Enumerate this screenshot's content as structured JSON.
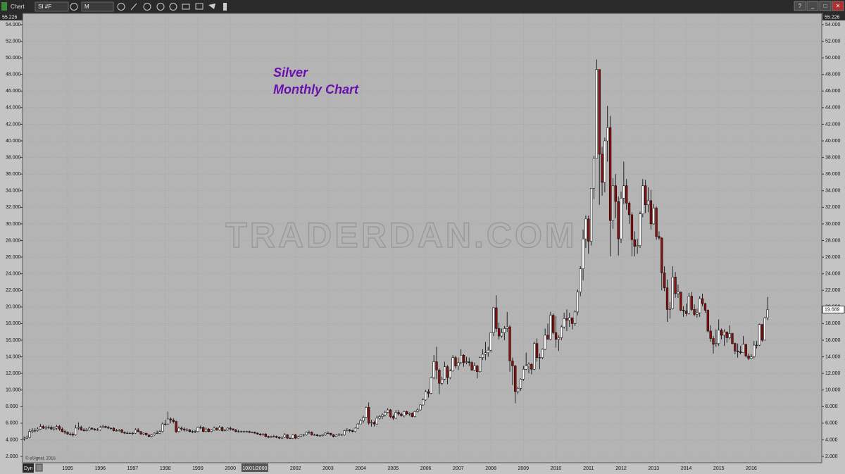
{
  "toolbar": {
    "tab": "Chart",
    "symbol": "SI #F",
    "interval": "M",
    "dyn": "Dyn",
    "window_buttons": [
      "?",
      "_",
      "□",
      "✕"
    ]
  },
  "chart_data": {
    "type": "candlestick",
    "title": "Silver",
    "subtitle": "Monthly Chart",
    "watermark": "TRADERDAN.COM",
    "copyright": "© eSignal, 2016",
    "up_color": "#ffffff",
    "down_color": "#8b1010",
    "grid": true,
    "ylim": [
      1.24,
      55.226
    ],
    "yticks": [
      {
        "value": 2,
        "label": "2.000"
      },
      {
        "value": 4,
        "label": "4.000"
      },
      {
        "value": 6,
        "label": "6.000"
      },
      {
        "value": 8,
        "label": "8.000"
      },
      {
        "value": 10,
        "label": "10.000"
      },
      {
        "value": 12,
        "label": "12.000"
      },
      {
        "value": 14,
        "label": "14.000"
      },
      {
        "value": 16,
        "label": "16.000"
      },
      {
        "value": 18,
        "label": "18.000"
      },
      {
        "value": 20,
        "label": "20.000"
      },
      {
        "value": 22,
        "label": "22.000"
      },
      {
        "value": 24,
        "label": "24.000"
      },
      {
        "value": 26,
        "label": "26.000"
      },
      {
        "value": 28,
        "label": "28.000"
      },
      {
        "value": 30,
        "label": "30.000"
      },
      {
        "value": 32,
        "label": "32.000"
      },
      {
        "value": 34,
        "label": "34.000"
      },
      {
        "value": 36,
        "label": "36.000"
      },
      {
        "value": 38,
        "label": "38.000"
      },
      {
        "value": 40,
        "label": "40.000"
      },
      {
        "value": 42,
        "label": "42.000"
      },
      {
        "value": 44,
        "label": "44.000"
      },
      {
        "value": 46,
        "label": "46.000"
      },
      {
        "value": 48,
        "label": "48.000"
      },
      {
        "value": 50,
        "label": "50.000"
      },
      {
        "value": 52,
        "label": "52.000"
      },
      {
        "value": 54,
        "label": "54.000"
      }
    ],
    "categories": [
      null,
      null,
      null,
      null,
      null,
      null,
      null,
      null,
      null,
      null,
      null,
      null,
      null,
      null,
      null,
      null,
      "1995",
      null,
      null,
      null,
      null,
      null,
      null,
      null,
      null,
      null,
      null,
      null,
      "1996",
      null,
      null,
      null,
      null,
      null,
      null,
      null,
      null,
      null,
      null,
      null,
      "1997",
      null,
      null,
      null,
      null,
      null,
      null,
      null,
      null,
      null,
      null,
      null,
      "1998",
      null,
      null,
      null,
      null,
      null,
      null,
      null,
      null,
      null,
      null,
      null,
      "1999",
      null,
      null,
      null,
      null,
      null,
      null,
      null,
      null,
      null,
      null,
      null,
      "2000",
      null,
      null,
      null,
      null,
      null,
      null,
      null,
      null,
      "10/01/2000",
      null,
      null,
      null,
      null,
      null,
      null,
      null,
      null,
      null,
      null,
      null,
      null,
      null,
      null,
      "2002",
      null,
      null,
      null,
      null,
      null,
      null,
      null,
      null,
      null,
      null,
      null,
      "2003",
      null,
      null,
      null,
      null,
      null,
      null,
      null,
      null,
      null,
      null,
      null,
      "2004",
      null,
      null,
      null,
      null,
      null,
      null,
      null,
      null,
      null,
      null,
      null,
      "2005",
      null,
      null,
      null,
      null,
      null,
      null,
      null,
      null,
      null,
      null,
      null,
      "2006",
      null,
      null,
      null,
      null,
      null,
      null,
      null,
      null,
      null,
      null,
      null,
      "2007",
      null,
      null,
      null,
      null,
      null,
      null,
      null,
      null,
      null,
      null,
      null,
      "2008",
      null,
      null,
      null,
      null,
      null,
      null,
      null,
      null,
      null,
      null,
      null,
      "2009",
      null,
      null,
      null,
      null,
      null,
      null,
      null,
      null,
      null,
      null,
      null,
      "2010",
      null,
      null,
      null,
      null,
      null,
      null,
      null,
      null,
      null,
      null,
      null,
      "2011",
      null,
      null,
      null,
      null,
      null,
      null,
      null,
      null,
      null,
      null,
      null,
      "2012",
      null,
      null,
      null,
      null,
      null,
      null,
      null,
      null,
      null,
      null,
      null,
      "2013",
      null,
      null,
      null,
      null,
      null,
      null,
      null,
      null,
      null,
      null,
      null,
      "2014",
      null,
      null,
      null,
      null,
      null,
      null,
      null,
      null,
      null,
      null,
      null,
      "2015",
      null,
      null,
      null,
      null,
      null,
      null,
      null,
      null,
      null,
      null,
      null,
      "2016",
      null,
      null,
      null,
      null,
      null,
      null
    ],
    "open": [
      4.1,
      4.2,
      4.3,
      5.0,
      5.1,
      5.1,
      5.3,
      5.6,
      5.4,
      5.5,
      5.5,
      5.3,
      5.4,
      5.6,
      5.3,
      5.0,
      4.9,
      4.7,
      4.7,
      4.6,
      5.4,
      5.5,
      5.2,
      5.1,
      5.2,
      5.4,
      5.3,
      5.2,
      5.2,
      5.5,
      5.6,
      5.5,
      5.4,
      5.4,
      5.1,
      5.1,
      5.2,
      4.9,
      4.8,
      4.8,
      4.8,
      4.8,
      5.2,
      5.0,
      4.7,
      4.8,
      4.6,
      4.4,
      4.6,
      4.8,
      4.8,
      5.0,
      5.9,
      5.9,
      6.5,
      6.4,
      6.2,
      5.0,
      5.4,
      5.3,
      5.2,
      5.2,
      5.0,
      5.0,
      5.0,
      5.5,
      5.5,
      5.0,
      5.3,
      5.0,
      5.2,
      5.4,
      5.2,
      5.5,
      5.1,
      5.2,
      5.4,
      5.3,
      5.2,
      5.0,
      5.0,
      5.0,
      5.0,
      5.0,
      4.9,
      4.9,
      4.8,
      4.7,
      4.6,
      4.7,
      4.4,
      4.3,
      4.4,
      4.4,
      4.3,
      4.2,
      4.3,
      4.6,
      4.2,
      4.2,
      4.6,
      4.2,
      4.4,
      4.6,
      4.6,
      4.9,
      4.9,
      4.6,
      4.6,
      4.5,
      4.5,
      4.6,
      4.8,
      4.8,
      4.6,
      4.4,
      4.6,
      4.6,
      4.6,
      5.1,
      5.2,
      5.1,
      5.0,
      5.4,
      5.9,
      6.3,
      6.7,
      7.9,
      6.0,
      6.1,
      5.9,
      6.6,
      6.8,
      7.0,
      7.3,
      7.6,
      6.8,
      6.6,
      7.3,
      7.1,
      6.9,
      7.4,
      7.1,
      7.2,
      6.8,
      7.4,
      7.6,
      8.2,
      8.8,
      9.8,
      9.6,
      11.5,
      13.4,
      12.4,
      10.8,
      11.3,
      12.8,
      11.5,
      12.3,
      13.9,
      12.9,
      13.3,
      14.2,
      13.3,
      13.4,
      13.3,
      12.4,
      12.9,
      12.2,
      13.9,
      14.3,
      14.5,
      14.8,
      16.9,
      19.9,
      17.4,
      16.5,
      16.9,
      17.4,
      17.6,
      13.5,
      12.9,
      9.8,
      10.2,
      11.3,
      12.5,
      12.9,
      13.1,
      12.5,
      15.6,
      13.9,
      13.9,
      14.9,
      16.6,
      16.1,
      19.0,
      16.9,
      16.1,
      16.3,
      17.6,
      18.6,
      18.4,
      18.7,
      18.0,
      19.4,
      21.8,
      24.6,
      28.2,
      30.6,
      27.9,
      34.3,
      37.9,
      48.6,
      38.4,
      35.0,
      40.0,
      41.6,
      30.4,
      34.6,
      32.7,
      28.2,
      33.1,
      34.6,
      32.5,
      31.1,
      28.1,
      27.3,
      27.4,
      31.2,
      34.6,
      32.3,
      32.8,
      30.0,
      31.9,
      28.5,
      28.3,
      24.1,
      22.3,
      19.7,
      19.8,
      23.6,
      21.6,
      21.8,
      19.6,
      19.5,
      19.2,
      21.3,
      19.7,
      19.1,
      19.3,
      21.0,
      20.4,
      19.6,
      17.1,
      16.2,
      15.5,
      15.6,
      17.2,
      16.6,
      17.0,
      16.3,
      16.8,
      15.6,
      14.7,
      14.6,
      14.5,
      15.5,
      14.1,
      13.8,
      14.0,
      15.4,
      15.4,
      17.9,
      16.0,
      18.7
    ],
    "high": [
      4.4,
      4.5,
      5.3,
      5.4,
      5.4,
      5.5,
      5.9,
      5.8,
      5.7,
      5.7,
      5.7,
      5.6,
      5.8,
      5.8,
      5.5,
      5.2,
      5.0,
      4.9,
      4.9,
      5.8,
      6.1,
      5.7,
      5.4,
      5.4,
      5.6,
      5.5,
      5.4,
      5.4,
      5.7,
      5.8,
      5.7,
      5.7,
      5.5,
      5.5,
      5.3,
      5.3,
      5.3,
      5.0,
      5.0,
      4.9,
      4.9,
      5.4,
      5.4,
      5.0,
      4.9,
      4.8,
      4.6,
      4.7,
      4.9,
      5.1,
      5.2,
      6.1,
      6.4,
      7.4,
      6.7,
      6.6,
      6.3,
      5.6,
      5.6,
      5.5,
      5.4,
      5.3,
      5.2,
      5.2,
      5.6,
      5.7,
      5.6,
      5.5,
      5.4,
      5.3,
      5.6,
      5.5,
      5.7,
      5.6,
      5.3,
      5.5,
      5.6,
      5.4,
      5.3,
      5.2,
      5.1,
      5.1,
      5.1,
      5.1,
      5.0,
      5.0,
      4.9,
      4.8,
      4.8,
      4.8,
      4.5,
      4.5,
      4.6,
      4.5,
      4.4,
      4.4,
      4.8,
      4.7,
      4.3,
      4.7,
      4.7,
      4.5,
      4.7,
      4.7,
      5.0,
      5.1,
      5.0,
      4.7,
      4.7,
      4.6,
      4.7,
      4.9,
      5.0,
      4.8,
      4.7,
      4.7,
      4.8,
      4.7,
      5.2,
      5.4,
      5.3,
      5.2,
      5.5,
      6.0,
      6.5,
      6.9,
      8.0,
      8.5,
      6.4,
      6.3,
      6.9,
      7.0,
      7.2,
      7.5,
      7.8,
      7.7,
      7.0,
      7.6,
      7.6,
      7.3,
      7.5,
      7.5,
      7.3,
      7.3,
      7.5,
      7.8,
      8.3,
      9.0,
      10.0,
      10.1,
      11.6,
      14.2,
      15.2,
      12.6,
      11.6,
      13.4,
      13.0,
      12.5,
      14.2,
      14.1,
      13.9,
      14.9,
      14.3,
      14.0,
      13.9,
      13.5,
      13.3,
      13.0,
      14.0,
      14.9,
      15.8,
      15.2,
      16.9,
      20.0,
      21.4,
      18.1,
      17.4,
      17.7,
      19.4,
      17.8,
      13.9,
      13.0,
      10.4,
      11.4,
      12.9,
      14.5,
      13.3,
      13.2,
      15.8,
      16.2,
      14.4,
      15.0,
      17.4,
      18.0,
      19.4,
      19.2,
      18.9,
      16.6,
      17.8,
      19.3,
      19.7,
      19.3,
      18.7,
      19.6,
      22.1,
      24.9,
      29.3,
      31.0,
      31.0,
      34.3,
      38.2,
      49.8,
      48.6,
      39.3,
      40.4,
      44.2,
      43.0,
      35.5,
      36.0,
      33.3,
      33.9,
      37.5,
      35.4,
      32.7,
      31.4,
      29.1,
      28.2,
      31.5,
      35.4,
      35.3,
      34.4,
      34.1,
      32.4,
      32.1,
      29.1,
      28.4,
      24.9,
      23.3,
      20.6,
      24.9,
      24.2,
      22.7,
      21.8,
      20.1,
      20.4,
      21.7,
      21.8,
      20.3,
      19.8,
      21.3,
      21.6,
      20.5,
      19.7,
      17.8,
      16.5,
      17.3,
      18.5,
      17.4,
      17.3,
      16.9,
      17.8,
      16.9,
      15.7,
      15.6,
      15.3,
      16.5,
      15.5,
      14.4,
      14.3,
      15.9,
      15.9,
      18.0,
      17.9,
      18.8,
      21.2
    ],
    "low": [
      3.9,
      4.1,
      4.2,
      4.8,
      4.9,
      5.0,
      5.2,
      5.3,
      5.2,
      5.3,
      5.2,
      5.1,
      5.2,
      5.1,
      4.9,
      4.7,
      4.6,
      4.5,
      4.4,
      4.5,
      5.2,
      5.1,
      5.0,
      5.0,
      5.1,
      5.2,
      5.1,
      5.1,
      5.1,
      5.4,
      5.4,
      5.3,
      5.2,
      5.0,
      5.0,
      5.0,
      4.8,
      4.7,
      4.7,
      4.7,
      4.6,
      4.7,
      4.9,
      4.6,
      4.6,
      4.5,
      4.3,
      4.3,
      4.5,
      4.7,
      4.7,
      4.9,
      5.7,
      5.8,
      6.0,
      6.0,
      4.8,
      4.9,
      5.1,
      5.0,
      5.0,
      4.9,
      4.8,
      4.8,
      4.9,
      5.3,
      4.9,
      4.9,
      4.9,
      4.9,
      5.1,
      5.1,
      5.1,
      5.0,
      5.0,
      5.1,
      5.1,
      5.1,
      4.9,
      4.9,
      4.9,
      4.9,
      4.9,
      4.8,
      4.8,
      4.7,
      4.6,
      4.5,
      4.5,
      4.3,
      4.2,
      4.2,
      4.3,
      4.2,
      4.1,
      4.1,
      4.2,
      4.1,
      4.1,
      4.1,
      4.1,
      4.2,
      4.3,
      4.4,
      4.5,
      4.7,
      4.5,
      4.5,
      4.4,
      4.4,
      4.4,
      4.5,
      4.7,
      4.5,
      4.3,
      4.4,
      4.5,
      4.5,
      4.5,
      5.0,
      4.9,
      4.9,
      4.9,
      5.3,
      5.9,
      6.0,
      6.6,
      5.8,
      5.6,
      5.6,
      5.8,
      6.4,
      6.5,
      6.8,
      7.2,
      6.6,
      6.4,
      6.5,
      6.9,
      6.8,
      6.7,
      7.0,
      6.9,
      6.7,
      6.7,
      7.3,
      7.5,
      8.1,
      8.7,
      9.1,
      9.5,
      11.3,
      11.3,
      9.5,
      10.6,
      11.2,
      10.7,
      11.3,
      12.2,
      12.6,
      12.4,
      13.1,
      12.8,
      13.1,
      12.9,
      12.3,
      12.3,
      11.4,
      12.1,
      13.6,
      13.6,
      14.0,
      14.6,
      16.5,
      17.0,
      16.1,
      16.3,
      16.0,
      17.0,
      12.2,
      10.6,
      8.4,
      9.5,
      9.9,
      11.1,
      12.4,
      12.0,
      11.9,
      12.4,
      13.4,
      12.5,
      13.7,
      14.8,
      16.2,
      16.0,
      16.7,
      15.1,
      14.7,
      16.0,
      17.4,
      17.1,
      17.6,
      17.3,
      17.7,
      19.0,
      21.3,
      23.2,
      27.1,
      26.4,
      27.4,
      33.0,
      37.9,
      32.3,
      33.4,
      33.8,
      37.5,
      26.1,
      29.4,
      30.7,
      26.2,
      27.7,
      32.4,
      31.7,
      30.0,
      26.1,
      26.1,
      26.4,
      27.1,
      30.8,
      31.3,
      31.4,
      29.3,
      29.9,
      28.1,
      28.1,
      22.0,
      21.9,
      18.2,
      18.6,
      19.7,
      21.1,
      21.1,
      19.5,
      18.8,
      18.9,
      19.1,
      19.5,
      18.9,
      18.7,
      18.8,
      20.1,
      19.3,
      16.9,
      15.8,
      14.4,
      15.2,
      15.3,
      16.1,
      15.3,
      15.7,
      16.1,
      15.5,
      14.3,
      13.9,
      14.3,
      14.6,
      13.9,
      13.6,
      13.7,
      13.8,
      15.0,
      15.3,
      15.8,
      16.0,
      18.4
    ],
    "close": [
      4.2,
      4.3,
      5.0,
      5.1,
      5.1,
      5.3,
      5.6,
      5.4,
      5.5,
      5.5,
      5.3,
      5.4,
      5.6,
      5.3,
      5.0,
      4.9,
      4.7,
      4.7,
      4.6,
      5.4,
      5.5,
      5.2,
      5.1,
      5.2,
      5.4,
      5.3,
      5.2,
      5.2,
      5.5,
      5.6,
      5.5,
      5.4,
      5.4,
      5.1,
      5.1,
      5.2,
      4.9,
      4.8,
      4.8,
      4.8,
      4.8,
      5.2,
      5.0,
      4.7,
      4.8,
      4.6,
      4.4,
      4.6,
      4.8,
      4.8,
      5.0,
      5.9,
      5.9,
      6.5,
      6.4,
      6.2,
      5.0,
      5.4,
      5.3,
      5.2,
      5.2,
      5.0,
      5.0,
      5.0,
      5.5,
      5.5,
      5.0,
      5.3,
      5.0,
      5.2,
      5.4,
      5.2,
      5.5,
      5.1,
      5.2,
      5.4,
      5.3,
      5.2,
      5.0,
      5.0,
      5.0,
      5.0,
      5.0,
      4.9,
      4.9,
      4.8,
      4.7,
      4.6,
      4.7,
      4.4,
      4.3,
      4.4,
      4.4,
      4.3,
      4.2,
      4.3,
      4.6,
      4.2,
      4.2,
      4.6,
      4.2,
      4.4,
      4.6,
      4.6,
      4.9,
      4.9,
      4.6,
      4.6,
      4.5,
      4.5,
      4.6,
      4.8,
      4.8,
      4.6,
      4.4,
      4.6,
      4.6,
      4.6,
      5.1,
      5.2,
      5.1,
      5.0,
      5.4,
      5.9,
      6.3,
      6.7,
      7.9,
      6.0,
      6.1,
      5.9,
      6.6,
      6.8,
      7.0,
      7.3,
      7.6,
      6.8,
      6.6,
      7.3,
      7.1,
      6.9,
      7.4,
      7.1,
      7.2,
      6.8,
      7.4,
      7.6,
      8.2,
      8.8,
      9.8,
      9.6,
      11.5,
      13.4,
      12.4,
      10.8,
      11.3,
      12.8,
      11.5,
      12.3,
      13.9,
      12.9,
      13.3,
      14.2,
      13.3,
      13.4,
      13.3,
      12.4,
      12.9,
      12.2,
      13.9,
      14.3,
      14.5,
      14.8,
      16.9,
      19.9,
      17.4,
      16.5,
      16.9,
      17.4,
      17.6,
      13.5,
      12.9,
      9.8,
      10.2,
      11.3,
      12.5,
      12.9,
      13.1,
      12.5,
      15.6,
      13.9,
      13.9,
      14.9,
      16.6,
      16.1,
      19.0,
      16.9,
      16.1,
      16.3,
      17.6,
      18.6,
      18.4,
      18.7,
      18.0,
      19.4,
      21.8,
      24.6,
      28.2,
      30.6,
      27.9,
      34.3,
      37.9,
      48.6,
      38.4,
      35.0,
      40.0,
      41.6,
      30.4,
      34.6,
      32.7,
      28.2,
      33.1,
      34.6,
      32.5,
      31.1,
      28.1,
      27.3,
      27.4,
      31.2,
      34.6,
      32.3,
      32.8,
      30.0,
      31.9,
      28.5,
      28.3,
      24.1,
      22.3,
      19.7,
      19.8,
      23.6,
      21.6,
      21.8,
      19.6,
      19.5,
      19.2,
      21.3,
      19.7,
      19.1,
      19.3,
      21.0,
      20.4,
      19.6,
      17.1,
      16.2,
      15.5,
      15.6,
      17.2,
      16.6,
      17.0,
      16.3,
      16.8,
      15.6,
      14.7,
      14.6,
      14.5,
      15.5,
      14.1,
      13.8,
      14.0,
      15.4,
      15.4,
      17.9,
      16.0,
      18.7,
      19.689
    ]
  }
}
